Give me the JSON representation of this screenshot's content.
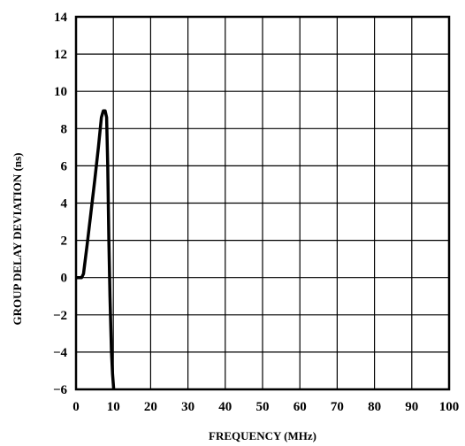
{
  "chart_data": {
    "type": "line",
    "xlabel": "FREQUENCY (MHz)",
    "ylabel": "GROUP DELAY DEVIATION (ns)",
    "xlim": [
      0,
      100
    ],
    "ylim": [
      -6,
      14
    ],
    "xticks": [
      0,
      10,
      20,
      30,
      40,
      50,
      60,
      70,
      80,
      90,
      100
    ],
    "yticks": [
      14,
      12,
      10,
      8,
      6,
      4,
      2,
      0,
      -2,
      -4,
      -6
    ],
    "ytick_labels": [
      "14",
      "12",
      "10",
      "8",
      "6",
      "4",
      "2",
      "0",
      "−2",
      "−4",
      "−6"
    ],
    "grid": true,
    "series": [
      {
        "color": "#000000",
        "points": [
          [
            0,
            0
          ],
          [
            1.5,
            0
          ],
          [
            2.0,
            0.2
          ],
          [
            3.0,
            1.8
          ],
          [
            4.0,
            3.5
          ],
          [
            5.0,
            5.2
          ],
          [
            6.0,
            7.0
          ],
          [
            6.8,
            8.6
          ],
          [
            7.3,
            8.95
          ],
          [
            7.8,
            8.95
          ],
          [
            8.2,
            8.6
          ],
          [
            8.5,
            6.0
          ],
          [
            8.8,
            2.0
          ],
          [
            9.1,
            -1.0
          ],
          [
            9.5,
            -4.0
          ],
          [
            9.8,
            -5.2
          ],
          [
            10.1,
            -6.0
          ]
        ]
      }
    ]
  }
}
